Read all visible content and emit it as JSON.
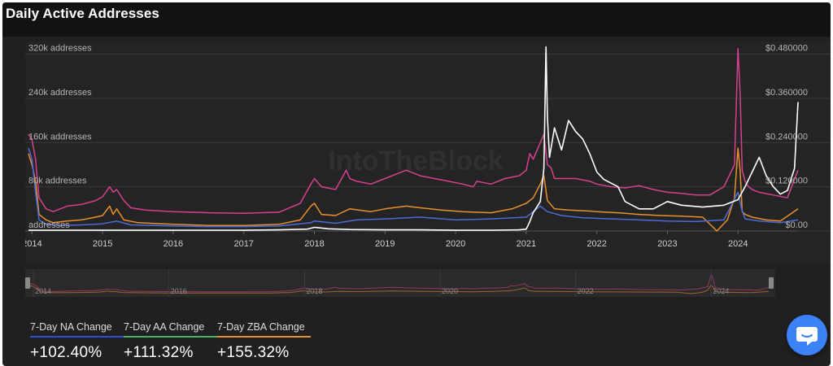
{
  "title": "Daily Active Addresses",
  "watermark": "IntoTheBlock",
  "colors": {
    "new_addresses": "#4f6bd8",
    "active_addresses": "#d6408f",
    "zero_balance_addresses": "#e8902e",
    "price": "#ffffff",
    "background": "#202020",
    "chat_button": "#3b82f6"
  },
  "chart_data": {
    "type": "line",
    "title": "Daily Active Addresses",
    "y_left_ticks": [
      "320k addresses",
      "240k addresses",
      "160k addresses",
      "80k addresses",
      "addresses"
    ],
    "y_left_range": [
      0,
      340000
    ],
    "y_right_ticks": [
      "$0.480000",
      "$0.360000",
      "$0.240000",
      "$0.120000",
      "$0.00"
    ],
    "y_right_range": [
      0,
      0.51
    ],
    "x_ticks": [
      "2014",
      "2015",
      "2016",
      "2017",
      "2018",
      "2019",
      "2020",
      "2021",
      "2022",
      "2023",
      "2024"
    ],
    "x_range": [
      2013.95,
      2024.85
    ],
    "navigator_ticks": [
      "2014",
      "2016",
      "2018",
      "2020",
      "2022",
      "2024"
    ],
    "grid": true,
    "series": [
      {
        "key": "active",
        "x": [
          2013.95,
          2014.0,
          2014.05,
          2014.1,
          2014.2,
          2014.3,
          2014.5,
          2014.7,
          2014.9,
          2015.0,
          2015.1,
          2015.15,
          2015.2,
          2015.3,
          2015.4,
          2015.6,
          2016.0,
          2016.5,
          2017.0,
          2017.5,
          2017.8,
          2017.95,
          2018.0,
          2018.1,
          2018.3,
          2018.45,
          2018.5,
          2018.6,
          2018.8,
          2019.0,
          2019.2,
          2019.3,
          2019.5,
          2019.7,
          2019.9,
          2020.1,
          2020.25,
          2020.3,
          2020.5,
          2020.7,
          2020.9,
          2021.0,
          2021.05,
          2021.1,
          2021.2,
          2021.25,
          2021.3,
          2021.35,
          2021.4,
          2021.5,
          2021.7,
          2021.9,
          2022.0,
          2022.2,
          2022.4,
          2022.6,
          2022.8,
          2023.0,
          2023.2,
          2023.4,
          2023.6,
          2023.8,
          2023.95,
          2024.0,
          2024.03,
          2024.06,
          2024.1,
          2024.15,
          2024.2,
          2024.3,
          2024.5,
          2024.7,
          2024.85
        ],
        "y": [
          175000,
          165000,
          130000,
          60000,
          40000,
          35000,
          45000,
          48000,
          55000,
          62000,
          80000,
          70000,
          75000,
          55000,
          42000,
          38000,
          35000,
          33000,
          32000,
          34000,
          50000,
          85000,
          95000,
          80000,
          75000,
          110000,
          95000,
          90000,
          85000,
          95000,
          105000,
          110000,
          100000,
          95000,
          90000,
          85000,
          80000,
          90000,
          85000,
          95000,
          100000,
          110000,
          140000,
          130000,
          160000,
          175000,
          120000,
          115000,
          95000,
          95000,
          95000,
          90000,
          85000,
          80000,
          78000,
          82000,
          75000,
          70000,
          68000,
          65000,
          65000,
          80000,
          120000,
          330000,
          250000,
          110000,
          90000,
          80000,
          75000,
          70000,
          65000,
          60000,
          110000
        ]
      },
      {
        "key": "zero_balance",
        "x": [
          2013.95,
          2014.0,
          2014.05,
          2014.1,
          2014.2,
          2014.3,
          2014.5,
          2014.7,
          2014.9,
          2015.0,
          2015.1,
          2015.15,
          2015.2,
          2015.3,
          2015.5,
          2016.0,
          2016.5,
          2017.0,
          2017.5,
          2017.8,
          2017.95,
          2018.0,
          2018.1,
          2018.3,
          2018.5,
          2018.8,
          2019.0,
          2019.3,
          2019.5,
          2019.8,
          2020.1,
          2020.5,
          2020.8,
          2021.0,
          2021.1,
          2021.2,
          2021.25,
          2021.3,
          2021.4,
          2021.6,
          2021.9,
          2022.0,
          2022.3,
          2022.6,
          2022.9,
          2023.2,
          2023.5,
          2023.7,
          2023.85,
          2023.95,
          2024.0,
          2024.03,
          2024.06,
          2024.1,
          2024.2,
          2024.4,
          2024.6,
          2024.85
        ],
        "y": [
          140000,
          120000,
          90000,
          30000,
          20000,
          15000,
          18000,
          20000,
          25000,
          28000,
          45000,
          30000,
          40000,
          20000,
          15000,
          12000,
          10000,
          10000,
          12000,
          20000,
          45000,
          50000,
          30000,
          28000,
          40000,
          35000,
          40000,
          45000,
          42000,
          38000,
          35000,
          33000,
          40000,
          50000,
          60000,
          85000,
          100000,
          55000,
          40000,
          38000,
          36000,
          35000,
          33000,
          30000,
          28000,
          27000,
          25000,
          0,
          20000,
          60000,
          150000,
          110000,
          35000,
          30000,
          25000,
          20000,
          18000,
          40000
        ]
      },
      {
        "key": "new",
        "x": [
          2013.95,
          2014.0,
          2014.05,
          2014.1,
          2014.2,
          2014.4,
          2014.7,
          2015.0,
          2015.2,
          2015.4,
          2016.0,
          2016.5,
          2017.0,
          2017.5,
          2017.95,
          2018.0,
          2018.3,
          2018.6,
          2019.0,
          2019.5,
          2020.0,
          2020.5,
          2021.0,
          2021.2,
          2021.3,
          2021.5,
          2021.8,
          2022.2,
          2022.6,
          2023.0,
          2023.4,
          2023.8,
          2024.0,
          2024.05,
          2024.1,
          2024.3,
          2024.6,
          2024.85
        ],
        "y": [
          150000,
          130000,
          70000,
          20000,
          12000,
          10000,
          11000,
          13000,
          18000,
          11000,
          9000,
          8000,
          8000,
          9000,
          15000,
          18000,
          14000,
          20000,
          22000,
          25000,
          20000,
          22000,
          25000,
          45000,
          35000,
          28000,
          24000,
          22000,
          20000,
          18000,
          17000,
          20000,
          70000,
          40000,
          22000,
          18000,
          15000,
          20000
        ]
      },
      {
        "key": "price",
        "axis": "right",
        "x": [
          2013.95,
          2014.0,
          2014.2,
          2014.5,
          2015.0,
          2015.5,
          2016.0,
          2016.5,
          2017.0,
          2017.5,
          2017.9,
          2018.0,
          2018.05,
          2018.2,
          2018.5,
          2019.0,
          2019.5,
          2020.0,
          2020.5,
          2020.9,
          2021.0,
          2021.05,
          2021.1,
          2021.2,
          2021.25,
          2021.28,
          2021.3,
          2021.33,
          2021.4,
          2021.5,
          2021.6,
          2021.7,
          2021.8,
          2021.9,
          2022.0,
          2022.1,
          2022.2,
          2022.3,
          2022.4,
          2022.5,
          2022.6,
          2022.8,
          2023.0,
          2023.2,
          2023.5,
          2023.8,
          2024.0,
          2024.1,
          2024.2,
          2024.3,
          2024.4,
          2024.5,
          2024.6,
          2024.7,
          2024.8,
          2024.85
        ],
        "y": [
          0.002,
          0.002,
          0.002,
          0.002,
          0.002,
          0.002,
          0.002,
          0.002,
          0.002,
          0.003,
          0.005,
          0.01,
          0.009,
          0.006,
          0.004,
          0.003,
          0.003,
          0.002,
          0.002,
          0.003,
          0.005,
          0.025,
          0.05,
          0.08,
          0.17,
          0.5,
          0.31,
          0.2,
          0.28,
          0.22,
          0.3,
          0.27,
          0.25,
          0.21,
          0.16,
          0.14,
          0.13,
          0.12,
          0.08,
          0.07,
          0.06,
          0.06,
          0.08,
          0.07,
          0.065,
          0.07,
          0.085,
          0.12,
          0.16,
          0.2,
          0.15,
          0.12,
          0.1,
          0.11,
          0.17,
          0.35
        ]
      }
    ]
  },
  "stats": [
    {
      "label": "7-Day NA Change",
      "value": "+102.40%",
      "color": "#2c4fd6"
    },
    {
      "label": "7-Day AA Change",
      "value": "+111.32%",
      "color": "#4caf6a"
    },
    {
      "label": "7-Day ZBA Change",
      "value": "+155.32%",
      "color": "#e8902e"
    }
  ],
  "chat_icon": "chat-bubble-icon"
}
